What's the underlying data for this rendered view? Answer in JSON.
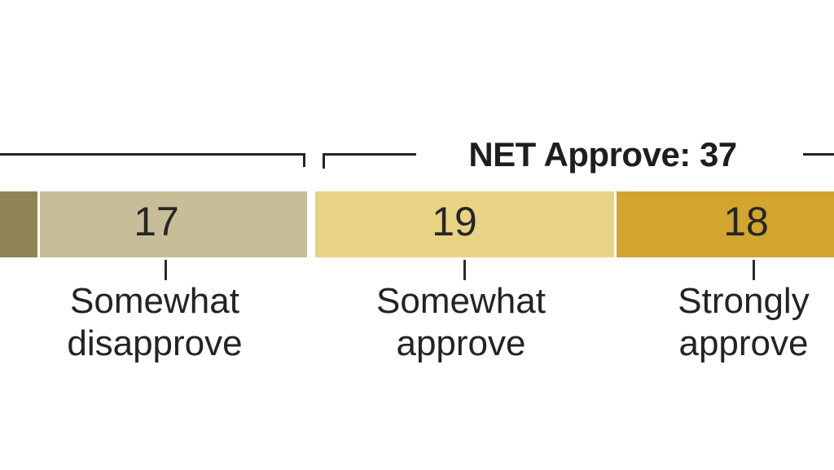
{
  "background": "#ffffff",
  "chart_data": {
    "type": "bar",
    "orientation": "horizontal_stacked",
    "title": "",
    "net_annotation": {
      "text": "NET Approve: 37",
      "value": 37,
      "side": "approve"
    },
    "segments": [
      {
        "label": "",
        "color": "#8e8455",
        "truncated": "left edge of image, value and label not visible"
      },
      {
        "label": "Somewhat disapprove",
        "value": 17,
        "color": "#c7bd99"
      },
      {
        "label": "Somewhat approve",
        "value": 19,
        "color": "#e8d284"
      },
      {
        "label": "Strongly approve",
        "value": 18,
        "color": "#d1a52e",
        "truncated": "right edge of image"
      }
    ],
    "brackets": {
      "left_bracket": "unlabeled bracket over disapprove segments, cut off at left edge",
      "right_bracket_label": "NET Approve: 37"
    },
    "line_color": "#222222",
    "text_color": "#232323",
    "legend_position": "none",
    "grid": false
  }
}
